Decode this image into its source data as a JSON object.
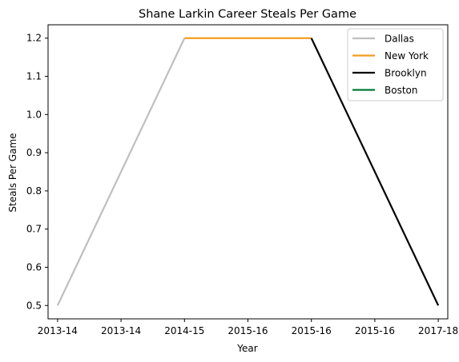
{
  "chart_data": {
    "type": "line",
    "title": "Shane Larkin Career Steals Per Game",
    "xlabel": "Year",
    "ylabel": "Steals Per Game",
    "x_tick_labels": [
      "2013-14",
      "2013-14",
      "2014-15",
      "2015-16",
      "2015-16",
      "2015-16",
      "2017-18"
    ],
    "ylim": [
      0.465,
      1.235
    ],
    "y_ticks": [
      0.5,
      0.6,
      0.7,
      0.8,
      0.9,
      1.0,
      1.1,
      1.2
    ],
    "y_tick_labels": [
      "0.5",
      "0.6",
      "0.7",
      "0.8",
      "0.9",
      "1.0",
      "1.1",
      "1.2"
    ],
    "grid": false,
    "legend_position": "top-right",
    "series": [
      {
        "name": "Dallas",
        "color": "#bfbfbf",
        "points": [
          {
            "x": "2013-14",
            "y": 0.5
          },
          {
            "x": "2014-15",
            "y": 1.2
          }
        ]
      },
      {
        "name": "New York",
        "color": "#f39c1f",
        "points": [
          {
            "x": "2014-15",
            "y": 1.2
          },
          {
            "x": "2015-16",
            "y": 1.2
          }
        ]
      },
      {
        "name": "Brooklyn",
        "color": "#000000",
        "points": [
          {
            "x": "2015-16",
            "y": 1.2
          },
          {
            "x": "2017-18",
            "y": 0.5
          }
        ]
      },
      {
        "name": "Boston",
        "color": "#007a33",
        "points": []
      }
    ]
  }
}
